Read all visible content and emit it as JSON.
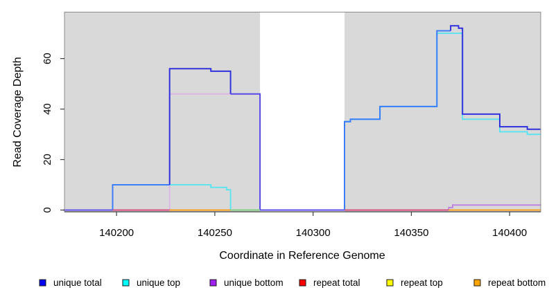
{
  "chart_data": {
    "type": "line",
    "subtype": "step-coverage-plot",
    "title": "",
    "xlabel": "Coordinate in Reference Genome",
    "ylabel": "Read Coverage Depth",
    "xlim": [
      140173.5,
      140415.8
    ],
    "ylim": [
      0,
      78.4
    ],
    "xticks": [
      {
        "value": 140200,
        "label": "140200"
      },
      {
        "value": 140250,
        "label": "140250"
      },
      {
        "value": 140300,
        "label": "140300"
      },
      {
        "value": 140350,
        "label": "140350"
      },
      {
        "value": 140400,
        "label": "140400"
      }
    ],
    "yticks": [
      {
        "value": 0,
        "label": "0"
      },
      {
        "value": 20,
        "label": "20"
      },
      {
        "value": 40,
        "label": "40"
      },
      {
        "value": 60,
        "label": "60"
      }
    ],
    "grid": false,
    "panel_bg": "#d9d9d9",
    "no_data_region": {
      "from": 140273,
      "to": 140316
    },
    "series": [
      {
        "name": "unique total",
        "color": "#0000f0",
        "step_points": [
          [
            140173,
            0
          ],
          [
            140198,
            10
          ],
          [
            140227,
            56
          ],
          [
            140248,
            55
          ],
          [
            140258,
            46
          ],
          [
            140273,
            0
          ],
          [
            140316,
            35
          ],
          [
            140319,
            36
          ],
          [
            140334,
            41
          ],
          [
            140363,
            71
          ],
          [
            140370,
            73
          ],
          [
            140374,
            72
          ],
          [
            140376,
            38
          ],
          [
            140395,
            33
          ],
          [
            140409,
            32
          ],
          [
            140416,
            32
          ]
        ]
      },
      {
        "name": "unique top",
        "color": "#00ffff",
        "step_points": [
          [
            140173,
            0
          ],
          [
            140198,
            10
          ],
          [
            140248,
            9
          ],
          [
            140256,
            8
          ],
          [
            140258,
            0
          ],
          [
            140316,
            35
          ],
          [
            140319,
            36
          ],
          [
            140334,
            41
          ],
          [
            140363,
            70
          ],
          [
            140376,
            36
          ],
          [
            140395,
            31
          ],
          [
            140409,
            30
          ],
          [
            140416,
            30
          ]
        ]
      },
      {
        "name": "unique bottom",
        "color": "#a020f0",
        "step_points": [
          [
            140173,
            0
          ],
          [
            140227,
            46
          ],
          [
            140273,
            0
          ],
          [
            140369,
            1
          ],
          [
            140371,
            2
          ],
          [
            140416,
            2
          ]
        ]
      },
      {
        "name": "repeat total",
        "color": "#ff0000",
        "step_points": [
          [
            140173,
            0
          ],
          [
            140416,
            0
          ]
        ]
      },
      {
        "name": "repeat top",
        "color": "#ffff00",
        "step_points": [
          [
            140173,
            0
          ],
          [
            140416,
            0
          ]
        ]
      },
      {
        "name": "repeat bottom",
        "color": "#ffa500",
        "step_points": [
          [
            140173,
            0
          ],
          [
            140416,
            0
          ]
        ]
      }
    ],
    "render_layers": [
      {
        "name": "unique-bottom-left",
        "color": "#d9b8e6",
        "pts": [
          [
            140227,
            0
          ],
          [
            140227,
            46
          ],
          [
            140273,
            46
          ],
          [
            140273,
            0
          ]
        ]
      },
      {
        "name": "unique-bottom-right",
        "color": "#bc85df",
        "pts": [
          [
            140369,
            0
          ],
          [
            140369,
            1
          ],
          [
            140371,
            1
          ],
          [
            140371,
            2
          ],
          [
            140416,
            2
          ]
        ]
      },
      {
        "name": "unique-top-left",
        "color": "#5fe3ef",
        "pts": [
          [
            140198,
            0
          ],
          [
            140198,
            10
          ],
          [
            140248,
            10
          ],
          [
            140248,
            9
          ],
          [
            140256,
            9
          ],
          [
            140256,
            8
          ],
          [
            140258,
            8
          ],
          [
            140258,
            0
          ],
          [
            140273,
            0
          ]
        ]
      },
      {
        "name": "unique-top-right",
        "color": "#5fe3ef",
        "pts": [
          [
            140316,
            0
          ],
          [
            140316,
            35
          ],
          [
            140319,
            35
          ],
          [
            140319,
            36
          ],
          [
            140334,
            36
          ],
          [
            140334,
            41
          ],
          [
            140363,
            41
          ],
          [
            140363,
            70
          ],
          [
            140376,
            70
          ],
          [
            140376,
            36
          ],
          [
            140395,
            36
          ],
          [
            140395,
            31
          ],
          [
            140409,
            31
          ],
          [
            140409,
            30
          ],
          [
            140416,
            30
          ]
        ]
      },
      {
        "name": "total-violet-left",
        "color": "#6153ec",
        "pts": [
          [
            140173,
            0
          ],
          [
            140198,
            0
          ]
        ]
      },
      {
        "name": "total-bright-left",
        "color": "#3b7df8",
        "pts": [
          [
            140198,
            0
          ],
          [
            140198,
            10
          ],
          [
            140227,
            10
          ]
        ]
      },
      {
        "name": "total-royal-block",
        "color": "#3232dc",
        "pts": [
          [
            140227,
            10
          ],
          [
            140227,
            56
          ],
          [
            140248,
            56
          ],
          [
            140248,
            55
          ],
          [
            140258,
            55
          ],
          [
            140258,
            46
          ]
        ]
      },
      {
        "name": "total-violet-mid",
        "color": "#5a4ae6",
        "pts": [
          [
            140258,
            46
          ],
          [
            140273,
            46
          ],
          [
            140273,
            0
          ],
          [
            140316,
            0
          ]
        ]
      },
      {
        "name": "total-bright-right",
        "color": "#3b7df8",
        "pts": [
          [
            140316,
            0
          ],
          [
            140316,
            35
          ],
          [
            140319,
            35
          ],
          [
            140319,
            36
          ],
          [
            140334,
            36
          ],
          [
            140334,
            41
          ],
          [
            140363,
            41
          ],
          [
            140363,
            71
          ],
          [
            140370,
            71
          ]
        ]
      },
      {
        "name": "total-royal-peak",
        "color": "#3232dc",
        "pts": [
          [
            140370,
            71
          ],
          [
            140370,
            73
          ],
          [
            140374,
            73
          ],
          [
            140374,
            72
          ],
          [
            140376,
            72
          ],
          [
            140376,
            38
          ],
          [
            140395,
            38
          ],
          [
            140395,
            33
          ],
          [
            140409,
            33
          ],
          [
            140409,
            32
          ],
          [
            140416,
            32
          ]
        ]
      },
      {
        "name": "baseline-crimson-left",
        "color": "#d64e7e",
        "pts": [
          [
            140198,
            0
          ],
          [
            140227,
            0
          ]
        ]
      },
      {
        "name": "baseline-orange-left",
        "color": "#ff9e1b",
        "pts": [
          [
            140227,
            0
          ],
          [
            140258,
            0
          ]
        ]
      },
      {
        "name": "baseline-green",
        "color": "#7fcd7f",
        "pts": [
          [
            140258,
            0
          ],
          [
            140273,
            0
          ]
        ]
      },
      {
        "name": "baseline-crimson-right",
        "color": "#d64e7e",
        "pts": [
          [
            140316,
            0
          ],
          [
            140369,
            0
          ]
        ]
      },
      {
        "name": "baseline-orange-right",
        "color": "#ff9e1b",
        "pts": [
          [
            140369,
            0
          ],
          [
            140416,
            0
          ]
        ]
      }
    ]
  },
  "legend": {
    "position": "bottom",
    "items": [
      {
        "label": "unique total",
        "color": "#0000f0"
      },
      {
        "label": "unique top",
        "color": "#00ffff"
      },
      {
        "label": "unique bottom",
        "color": "#a020f0"
      },
      {
        "label": "repeat total",
        "color": "#ff0000"
      },
      {
        "label": "repeat top",
        "color": "#ffff00"
      },
      {
        "label": "repeat bottom",
        "color": "#ffa500"
      }
    ],
    "swatch_border_color": "#1a1a1a"
  },
  "frame": {
    "box_color": "#8c8c8c",
    "axis_color": "#3c3c3c",
    "text_color": "#000000"
  }
}
